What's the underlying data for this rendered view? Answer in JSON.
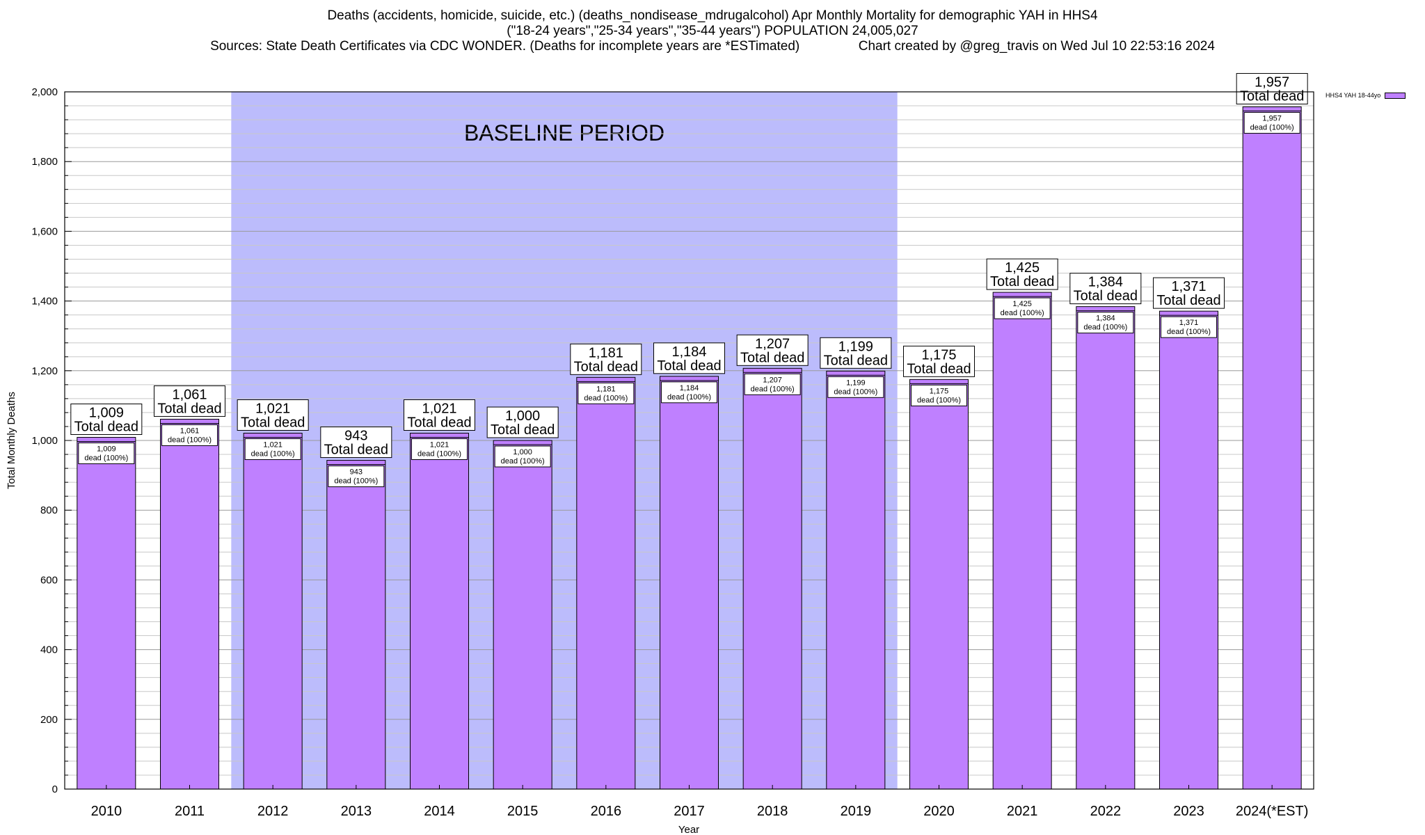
{
  "title": {
    "line1": "Deaths (accidents, homicide, suicide, etc.) (deaths_nondisease_mdrugalcohol) Apr Monthly Mortality for demographic YAH in HHS4",
    "line2": "(\"18-24 years\",\"25-34 years\",\"35-44 years\") POPULATION 24,005,027",
    "line3": "Sources: State Death Certificates via CDC WONDER. (Deaths for incomplete years are *ESTimated)                Chart created by @greg_travis on Wed Jul 10 22:53:16 2024"
  },
  "colors": {
    "bar": "#bf80ff",
    "baseline": "#bcbcfc",
    "grid": "#c8c8c8"
  },
  "chart_data": {
    "type": "bar",
    "xlabel": "Year",
    "ylabel": "Total Monthly Deaths",
    "ylim": [
      0,
      2000
    ],
    "yticks": [
      0,
      200,
      400,
      600,
      800,
      1000,
      1200,
      1400,
      1600,
      1800,
      2000
    ],
    "ytick_labels": [
      "0",
      "200",
      "400",
      "600",
      "800",
      "1,000",
      "1,200",
      "1,400",
      "1,600",
      "1,800",
      "2,000"
    ],
    "categories": [
      "2010",
      "2011",
      "2012",
      "2013",
      "2014",
      "2015",
      "2016",
      "2017",
      "2018",
      "2019",
      "2020",
      "2021",
      "2022",
      "2023",
      "2024(*EST)"
    ],
    "series": [
      {
        "name": "HHS4 YAH 18-44yo",
        "values": [
          1009,
          1061,
          1021,
          943,
          1021,
          1000,
          1181,
          1184,
          1207,
          1199,
          1175,
          1425,
          1384,
          1371,
          1957
        ]
      }
    ],
    "value_labels": [
      "1,009",
      "1,061",
      "1,021",
      "943",
      "1,021",
      "1,000",
      "1,181",
      "1,184",
      "1,207",
      "1,199",
      "1,175",
      "1,425",
      "1,384",
      "1,371",
      "1,957"
    ],
    "total_label": "Total dead",
    "inner_label_suffix": "dead (100%)",
    "baseline_period": {
      "label": "BASELINE PERIOD",
      "start": "2012",
      "end": "2019"
    },
    "legend": "top-right",
    "grid": true
  }
}
